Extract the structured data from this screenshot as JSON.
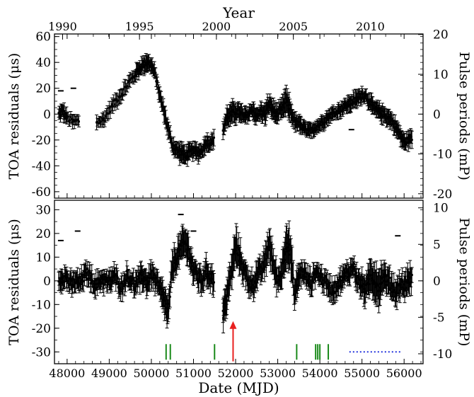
{
  "chart_data": [
    {
      "panel": "top",
      "type": "scatter",
      "error_bars": true,
      "top_axis": {
        "label": "Year",
        "ticks": [
          1990,
          1995,
          2000,
          2005,
          2010
        ],
        "tick_mjd": [
          47892,
          49718,
          51544,
          53371,
          55197
        ]
      },
      "ylabel": "TOA residuals (μs)",
      "ylim": [
        -65,
        62
      ],
      "yticks": [
        -60,
        -40,
        -20,
        0,
        20,
        40,
        60
      ],
      "right_axis": {
        "label": "Pulse periods (mP)",
        "ticks": [
          -20,
          -10,
          0,
          10,
          20
        ],
        "us_per_mP": 3.08
      },
      "xlim": [
        47700,
        56450
      ],
      "x": [
        47800,
        47900,
        48000,
        48150,
        48300,
        48500,
        48700,
        48850,
        49000,
        49150,
        49300,
        49450,
        49600,
        49700,
        49800,
        49900,
        50000,
        50100,
        50200,
        50300,
        50400,
        50500,
        50600,
        50700,
        50800,
        50900,
        51000,
        51100,
        51200,
        51300,
        51400,
        51500,
        51700,
        51800,
        51900,
        52000,
        52100,
        52200,
        52300,
        52400,
        52500,
        52600,
        52700,
        52800,
        52900,
        53000,
        53100,
        53200,
        53300,
        53400,
        53500,
        53600,
        53700,
        53800,
        53900,
        54000,
        54100,
        54200,
        54300,
        54400,
        54500,
        54600,
        54700,
        54800,
        54900,
        55000,
        55100,
        55200,
        55300,
        55400,
        55500,
        55600,
        55700,
        55800,
        55900,
        56000,
        56100,
        56200
      ],
      "y": [
        0,
        2,
        -3,
        -6,
        -5,
        -4,
        -6,
        -5,
        3,
        10,
        16,
        24,
        30,
        35,
        38,
        40,
        38,
        30,
        14,
        2,
        -12,
        -24,
        -28,
        -30,
        -32,
        -30,
        -28,
        -30,
        -28,
        -22,
        -22,
        -20,
        -12,
        -2,
        0,
        2,
        1,
        -2,
        0,
        4,
        -2,
        2,
        0,
        8,
        2,
        0,
        4,
        10,
        3,
        -6,
        -8,
        -10,
        -14,
        -12,
        -10,
        -8,
        -5,
        -2,
        0,
        2,
        4,
        6,
        8,
        10,
        12,
        15,
        14,
        8,
        4,
        2,
        0,
        -2,
        -5,
        -10,
        -16,
        -22,
        -20,
        -18
      ],
      "outliers": [
        [
          47850,
          18
        ],
        [
          48150,
          20
        ],
        [
          49250,
          14
        ],
        [
          49350,
          15
        ],
        [
          54750,
          -12
        ]
      ],
      "err": [
        4,
        6,
        5,
        5,
        5,
        6,
        5,
        5,
        5,
        5,
        5,
        5,
        5,
        6,
        6,
        6,
        6,
        5,
        5,
        6,
        6,
        6,
        6,
        7,
        7,
        6,
        6,
        6,
        6,
        6,
        6,
        6,
        6,
        7,
        8,
        8,
        7,
        6,
        6,
        6,
        6,
        6,
        7,
        8,
        8,
        6,
        8,
        10,
        8,
        6,
        6,
        6,
        5,
        5,
        5,
        5,
        5,
        5,
        5,
        5,
        5,
        5,
        6,
        6,
        6,
        5,
        5,
        6,
        6,
        6,
        6,
        6,
        6,
        6,
        6,
        6,
        6,
        6
      ]
    },
    {
      "panel": "bottom",
      "type": "scatter",
      "error_bars": true,
      "xlabel": "Date (MJD)",
      "xlim": [
        47700,
        56450
      ],
      "xticks": [
        48000,
        49000,
        50000,
        51000,
        52000,
        53000,
        54000,
        55000,
        56000
      ],
      "ylabel": "TOA residuals (μs)",
      "ylim": [
        -35,
        34
      ],
      "yticks": [
        -30,
        -20,
        -10,
        0,
        10,
        20,
        30
      ],
      "right_axis": {
        "label": "Pulse periods (mP)",
        "ticks": [
          -10,
          -5,
          0,
          5,
          10
        ],
        "us_per_mP": 3.08
      },
      "x": [
        47800,
        47900,
        48000,
        48100,
        48200,
        48300,
        48400,
        48500,
        48600,
        48700,
        48800,
        48900,
        49000,
        49100,
        49200,
        49300,
        49400,
        49500,
        49600,
        49700,
        49800,
        49900,
        50000,
        50100,
        50200,
        50300,
        50400,
        50500,
        50600,
        50700,
        50800,
        50900,
        51000,
        51100,
        51200,
        51300,
        51400,
        51500,
        51700,
        51750,
        51800,
        51900,
        52000,
        52100,
        52200,
        52300,
        52400,
        52500,
        52600,
        52700,
        52800,
        52900,
        53000,
        53100,
        53200,
        53300,
        53400,
        53500,
        53600,
        53700,
        53800,
        53900,
        54000,
        54100,
        54200,
        54300,
        54400,
        54500,
        54600,
        54700,
        54800,
        54900,
        55000,
        55100,
        55200,
        55300,
        55400,
        55500,
        55600,
        55700,
        55800,
        55900,
        56000,
        56100,
        56200
      ],
      "y": [
        0,
        2,
        1,
        -2,
        0,
        -1,
        2,
        3,
        0,
        -2,
        1,
        0,
        -1,
        2,
        0,
        -3,
        2,
        1,
        -2,
        0,
        2,
        -1,
        3,
        0,
        -4,
        -8,
        -14,
        6,
        10,
        14,
        16,
        12,
        4,
        2,
        0,
        4,
        2,
        0,
        -14,
        -10,
        -6,
        4,
        14,
        10,
        4,
        0,
        -2,
        2,
        4,
        8,
        16,
        6,
        0,
        4,
        16,
        12,
        -6,
        2,
        4,
        1,
        -1,
        4,
        2,
        0,
        -2,
        -4,
        -2,
        0,
        2,
        4,
        6,
        0,
        -2,
        -4,
        2,
        0,
        -3,
        2,
        0,
        -2,
        -5,
        -2,
        -2,
        0,
        2
      ],
      "outliers": [
        [
          47850,
          17
        ],
        [
          48250,
          21
        ],
        [
          50700,
          28
        ],
        [
          51000,
          21
        ],
        [
          55850,
          19
        ]
      ],
      "err": [
        4,
        4,
        4,
        4,
        4,
        4,
        4,
        4,
        4,
        4,
        4,
        4,
        4,
        4,
        4,
        4,
        4,
        4,
        4,
        4,
        5,
        5,
        5,
        5,
        5,
        6,
        6,
        6,
        6,
        6,
        6,
        6,
        5,
        5,
        5,
        5,
        5,
        5,
        6,
        6,
        6,
        6,
        8,
        6,
        5,
        5,
        5,
        5,
        5,
        6,
        7,
        6,
        5,
        6,
        10,
        8,
        6,
        5,
        4,
        4,
        4,
        4,
        4,
        4,
        4,
        4,
        4,
        4,
        4,
        4,
        5,
        5,
        5,
        6,
        6,
        8,
        8,
        5,
        5,
        5,
        5,
        5,
        5,
        5,
        5
      ],
      "green_markers_mjd": [
        50350,
        50450,
        51500,
        53450,
        53900,
        53950,
        54000,
        54200
      ],
      "red_arrow": {
        "mjd": 51940,
        "from_y": -34,
        "to_y": -17
      },
      "blue_dotted_range_mjd": [
        54700,
        55950
      ],
      "marker_y": -30
    }
  ],
  "colors": {
    "ink": "#000000",
    "green": "#1a8a1a",
    "red": "#e8201f",
    "blue": "#2233dd"
  }
}
